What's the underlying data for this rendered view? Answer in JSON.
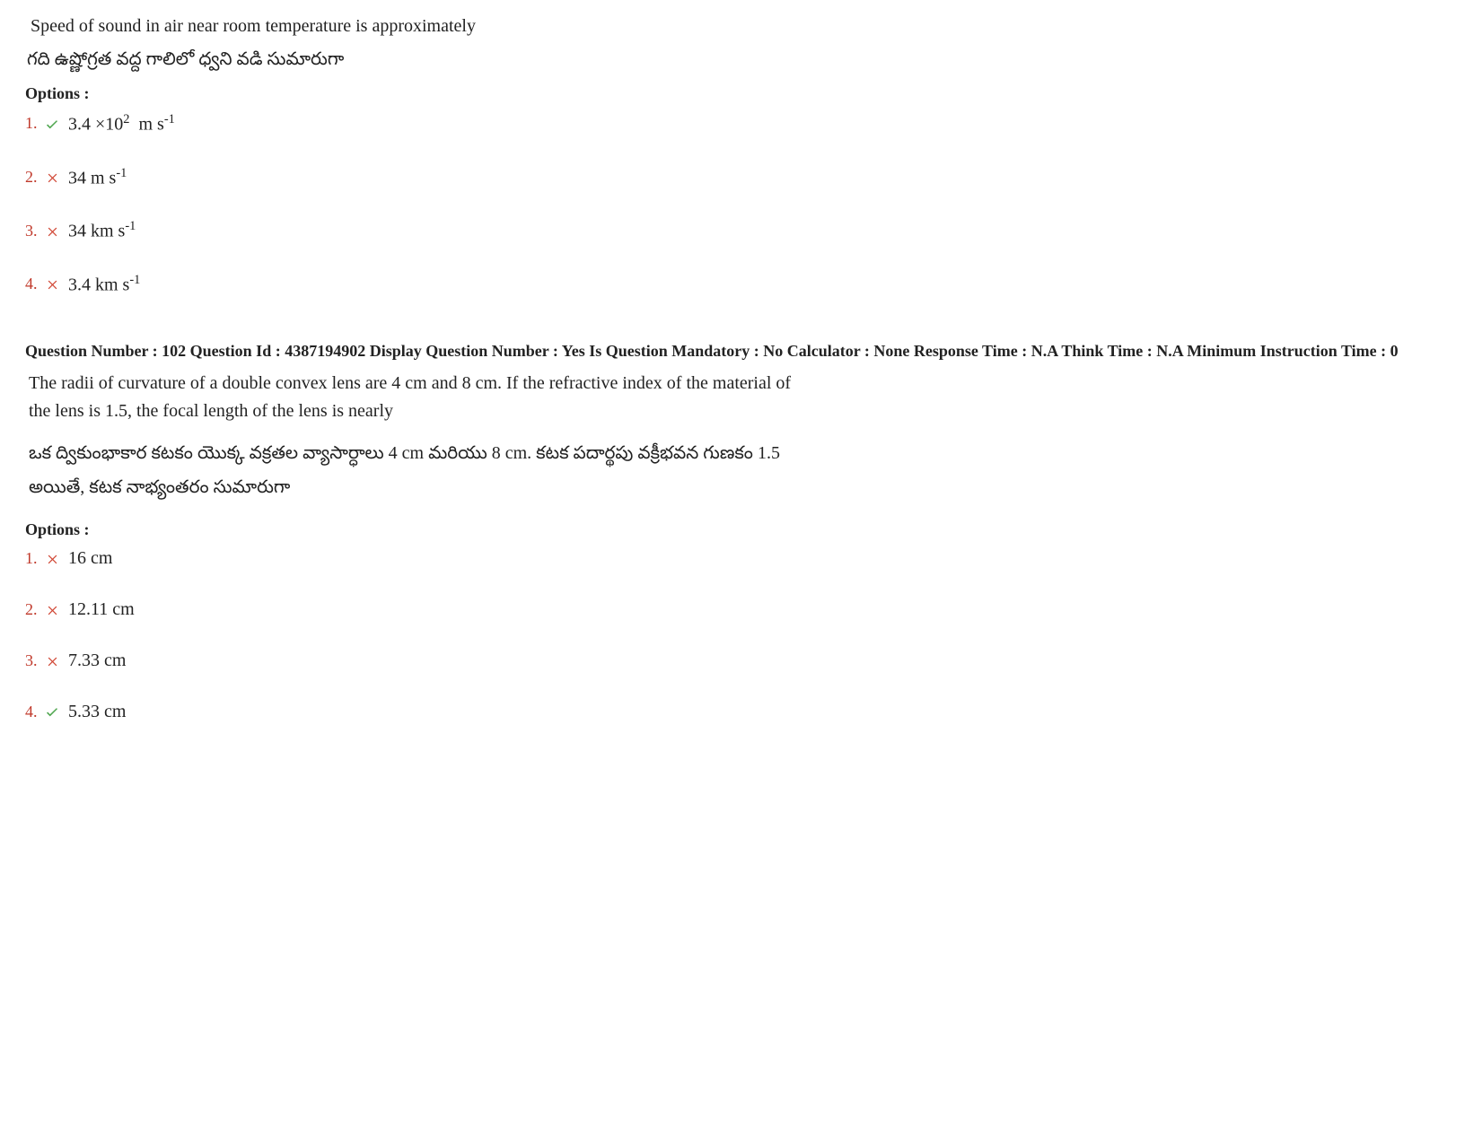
{
  "q1": {
    "text_en": "Speed of sound in air near room temperature is approximately",
    "text_te": "గది ఉష్ణోగ్రత వద్ద గాలిలో ధ్వని వడి సుమారుగా",
    "options_label": "Options :",
    "options": [
      {
        "num": "1.",
        "correct": true,
        "text_html": "3.4 ×10<span class='sup'>2</span>&nbsp; m s<span class='sup'>-1</span>"
      },
      {
        "num": "2.",
        "correct": false,
        "text_html": "34 m s<span class='sup'>-1</span>"
      },
      {
        "num": "3.",
        "correct": false,
        "text_html": "34 km s<span class='sup'>-1</span>"
      },
      {
        "num": "4.",
        "correct": false,
        "text_html": "3.4 km s<span class='sup'>-1</span>"
      }
    ]
  },
  "meta": "Question Number : 102 Question Id : 4387194902 Display Question Number : Yes Is Question Mandatory : No Calculator : None Response Time : N.A Think Time : N.A Minimum Instruction Time : 0",
  "q2": {
    "text_en": "The radii of curvature of a double convex lens are 4 cm and 8 cm.  If the refractive index of the material of the lens is 1.5, the focal length of the lens is nearly",
    "text_te": "ఒక ద్వికుంభాకార కటకం యొక్క వక్రతల వ్యాసార్ధాలు 4 cm మరియు 8 cm.   కటక పదార్థపు వక్రీభవన గుణకం 1.5 అయితే, కటక నాభ్యంతరం సుమారుగా",
    "options_label": "Options :",
    "options": [
      {
        "num": "1.",
        "correct": false,
        "text_html": "16 cm"
      },
      {
        "num": "2.",
        "correct": false,
        "text_html": "12.11 cm"
      },
      {
        "num": "3.",
        "correct": false,
        "text_html": "7.33 cm"
      },
      {
        "num": "4.",
        "correct": true,
        "text_html": "5.33 cm"
      }
    ]
  },
  "colors": {
    "opt_num": "#c0392b",
    "check": "#4fa64f",
    "cross": "#d14836"
  }
}
